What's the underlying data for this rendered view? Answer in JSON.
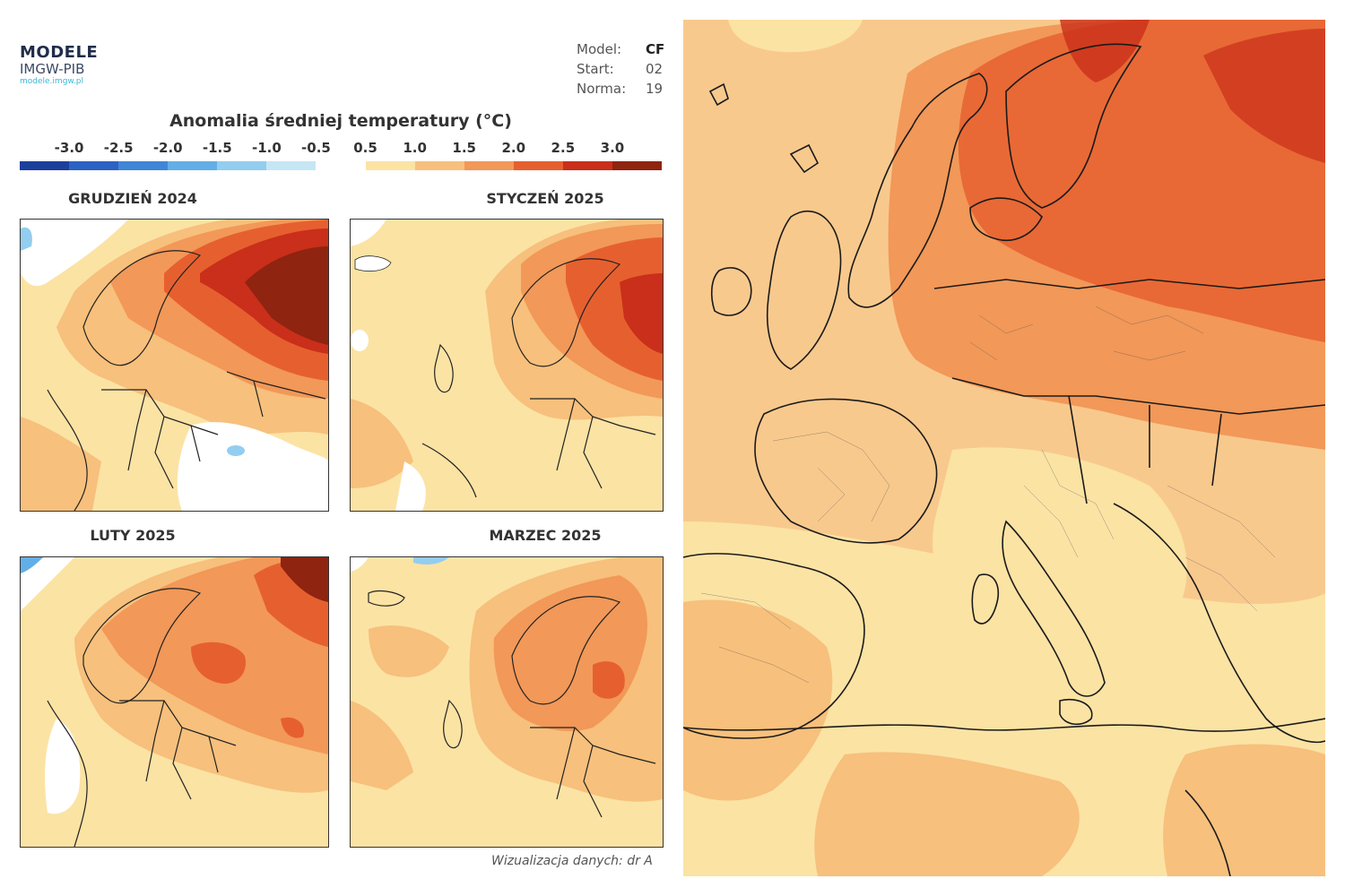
{
  "header": {
    "logo_main": "MODELE",
    "logo_sub": "IMGW-PIB",
    "logo_url": "modele.imgw.pl",
    "meta": [
      {
        "label": "Model:",
        "value": "CF"
      },
      {
        "label": "Start:",
        "value": "02"
      },
      {
        "label": "Norma:",
        "value": "19"
      }
    ]
  },
  "legend": {
    "title": "Anomalia średniej temperatury (°C)",
    "ticks": [
      "-3.0",
      "-2.5",
      "-2.0",
      "-1.5",
      "-1.0",
      "-0.5",
      "0.5",
      "1.0",
      "1.5",
      "2.0",
      "2.5",
      "3.0"
    ],
    "colors": [
      "#1d3f9c",
      "#2c62c4",
      "#3f86d8",
      "#63aee6",
      "#93cdef",
      "#c6e6f5",
      "#ffffff",
      "#fbe3a4",
      "#f7c07c",
      "#f29858",
      "#e6602f",
      "#c92f1a",
      "#8f2410"
    ]
  },
  "panels": [
    {
      "id": "grudzien",
      "title": "GRUDZIEŃ 2024"
    },
    {
      "id": "styczen",
      "title": "STYCZEŃ 2025"
    },
    {
      "id": "luty",
      "title": "LUTY 2025"
    },
    {
      "id": "marzec",
      "title": "MARZEC 2025"
    }
  ],
  "footer": {
    "credit": "Wizualizacja danych: dr A"
  },
  "colors": {
    "land_light": "#fbe3a4",
    "land_orange": "#f7c07c",
    "strong_orange": "#f29858",
    "red": "#e6602f",
    "dark_red": "#c92f1a",
    "darkest": "#8f2410",
    "sea_ochre": "#f8c98d"
  }
}
